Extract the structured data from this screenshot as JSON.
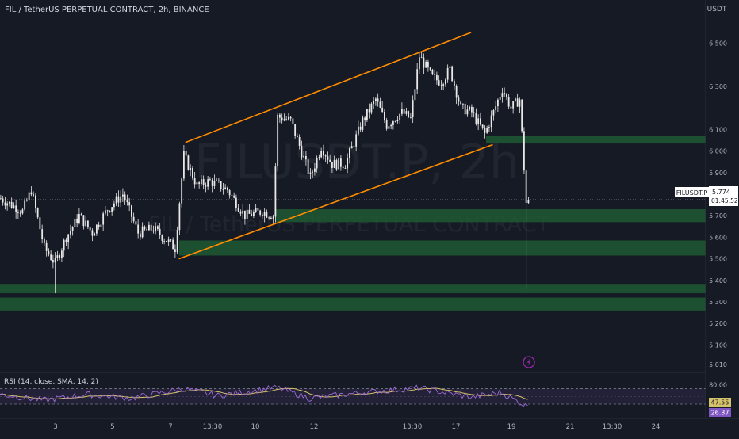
{
  "header": {
    "symbol_title": "FIL / TetherUS PERPETUAL CONTRACT, 2h, BINANCE",
    "currency": "USDT"
  },
  "watermark": {
    "ticker": "FILUSDT.P, 2h",
    "name": "FIL / TetherUS PERPETUAL CONTRACT"
  },
  "price_tag": {
    "symbol": "FILUSDT.P",
    "price": "5.774",
    "countdown": "01:45:52"
  },
  "rsi": {
    "label": "RSI (14, close, SMA, 14, 2)",
    "value_rsi": "26.37",
    "value_sma": "47.55",
    "upper_band": 70,
    "lower_band": 30,
    "ticks": [
      "80.00"
    ]
  },
  "colors": {
    "background": "#161a25",
    "candle": "#e8e8e8",
    "zone": "#1e5a32",
    "channel": "#ff8c00",
    "rsi_line": "#9c6ad4",
    "rsi_sma": "#d6c26a",
    "rsi_band": "#7e57c2",
    "grid_text": "#b2b5be"
  },
  "chart_data": {
    "type": "candlestick",
    "title": "FIL / TetherUS PERPETUAL CONTRACT, 2h, BINANCE",
    "ylabel": "USDT",
    "ylim": [
      4.98,
      6.62
    ],
    "x_ticks": [
      "3",
      "5",
      "7",
      "13:30",
      "10",
      "12",
      "13:30",
      "17",
      "19",
      "21",
      "13:30",
      "24"
    ],
    "y_ticks": [
      "6.500",
      "6.300",
      "6.100",
      "6.000",
      "5.900",
      "5.800",
      "5.700",
      "5.600",
      "5.500",
      "5.400",
      "5.300",
      "5.200",
      "5.100",
      "5.010"
    ],
    "last_price": 5.774,
    "horizontal_line": 6.46,
    "zones": [
      {
        "low": 6.035,
        "high": 6.07
      },
      {
        "low": 5.67,
        "high": 5.73
      },
      {
        "low": 5.515,
        "high": 5.585
      },
      {
        "low": 5.34,
        "high": 5.38
      },
      {
        "low": 5.26,
        "high": 5.32
      }
    ],
    "channel": {
      "upper": [
        {
          "bar": 85,
          "price": 6.04
        },
        {
          "bar": 216,
          "price": 6.55
        }
      ],
      "lower": [
        {
          "bar": 82,
          "price": 5.5
        },
        {
          "bar": 226,
          "price": 6.03
        }
      ]
    },
    "waypoints": [
      [
        0,
        5.78
      ],
      [
        10,
        5.72
      ],
      [
        14,
        5.82
      ],
      [
        20,
        5.55
      ],
      [
        25,
        5.48
      ],
      [
        30,
        5.6
      ],
      [
        36,
        5.7
      ],
      [
        42,
        5.62
      ],
      [
        49,
        5.73
      ],
      [
        56,
        5.8
      ],
      [
        63,
        5.62
      ],
      [
        70,
        5.64
      ],
      [
        80,
        5.55
      ],
      [
        84,
        5.98
      ],
      [
        90,
        5.84
      ],
      [
        96,
        5.86
      ],
      [
        104,
        5.82
      ],
      [
        112,
        5.7
      ],
      [
        120,
        5.72
      ],
      [
        125,
        5.7
      ],
      [
        127,
        6.16
      ],
      [
        133,
        6.14
      ],
      [
        142,
        5.88
      ],
      [
        147,
        6.02
      ],
      [
        152,
        5.94
      ],
      [
        158,
        5.94
      ],
      [
        166,
        6.14
      ],
      [
        172,
        6.24
      ],
      [
        177,
        6.12
      ],
      [
        184,
        6.18
      ],
      [
        188,
        6.15
      ],
      [
        192,
        6.44
      ],
      [
        198,
        6.34
      ],
      [
        202,
        6.32
      ],
      [
        206,
        6.38
      ],
      [
        211,
        6.2
      ],
      [
        216,
        6.18
      ],
      [
        222,
        6.08
      ],
      [
        226,
        6.18
      ],
      [
        230,
        6.29
      ],
      [
        234,
        6.2
      ],
      [
        238,
        6.24
      ],
      [
        241,
        5.76
      ],
      [
        242,
        5.774
      ]
    ],
    "rsi_waypoints": [
      [
        0,
        55
      ],
      [
        20,
        40
      ],
      [
        40,
        55
      ],
      [
        60,
        45
      ],
      [
        84,
        70
      ],
      [
        100,
        52
      ],
      [
        127,
        73
      ],
      [
        142,
        45
      ],
      [
        166,
        60
      ],
      [
        192,
        72
      ],
      [
        216,
        48
      ],
      [
        230,
        60
      ],
      [
        241,
        26
      ]
    ]
  }
}
